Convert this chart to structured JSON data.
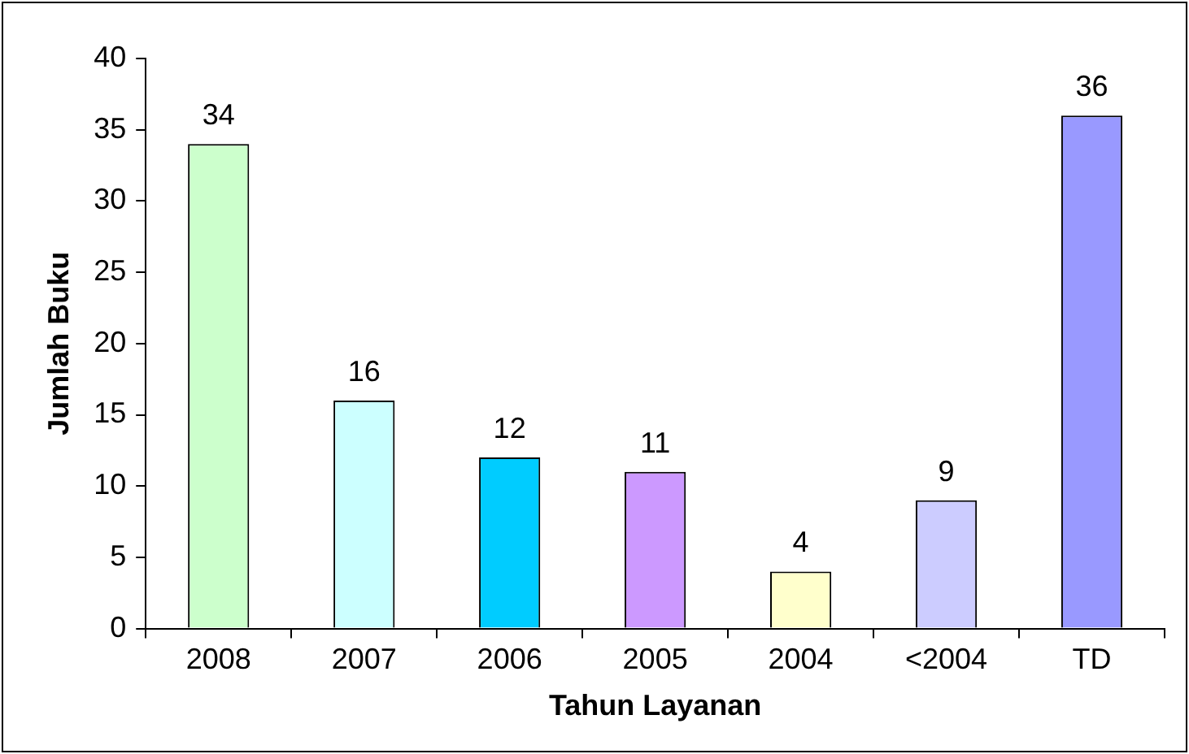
{
  "chart_data": {
    "type": "bar",
    "xlabel": "Tahun Layanan",
    "ylabel": "Jumlah Buku",
    "categories": [
      "2008",
      "2007",
      "2006",
      "2005",
      "2004",
      "<2004",
      "TD"
    ],
    "values": [
      34,
      16,
      12,
      11,
      4,
      9,
      36
    ],
    "colors": [
      "#ccffcc",
      "#ccffff",
      "#00ccff",
      "#cc99ff",
      "#ffffcc",
      "#ccccff",
      "#9999ff"
    ],
    "ylim": [
      0,
      40
    ],
    "yticks": [
      0,
      5,
      10,
      15,
      20,
      25,
      30,
      35,
      40
    ],
    "grid": false,
    "legend": false,
    "data_labels": true
  }
}
